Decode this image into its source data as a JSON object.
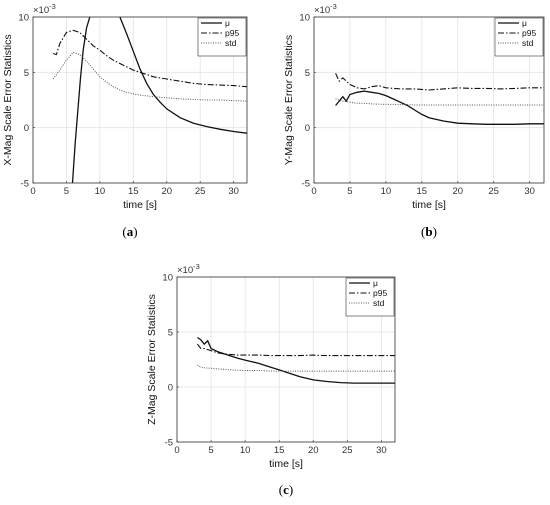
{
  "chart_data": [
    {
      "type": "line",
      "caption": "a",
      "ylabel": "X-Mag Scale Error Statistics",
      "xlabel": "time [s]",
      "y_exponent_label": "×10",
      "y_exponent": "-3",
      "xlim": [
        0,
        32
      ],
      "ylim": [
        -5,
        10
      ],
      "xticks": [
        "0",
        "5",
        "10",
        "15",
        "20",
        "25",
        "30"
      ],
      "yticks": [
        "-5",
        "0",
        "5",
        "10"
      ],
      "grid": true,
      "legend_position": "top-right",
      "series": [
        {
          "name": "μ",
          "style": "solid",
          "x": [
            5.9,
            6.3,
            6.7,
            7.1,
            7.5,
            8.0,
            8.5
          ],
          "y": [
            -5,
            -1.5,
            1.5,
            4.5,
            7,
            9,
            10
          ]
        },
        {
          "name": "μ",
          "style": "solid",
          "continuation": true,
          "x": [
            13.0,
            14,
            15,
            16,
            17,
            18,
            19,
            20,
            22,
            24,
            26,
            28,
            30,
            32
          ],
          "y": [
            10,
            8.5,
            6.9,
            5.3,
            4.0,
            3.0,
            2.3,
            1.7,
            0.9,
            0.4,
            0.1,
            -0.15,
            -0.35,
            -0.5
          ]
        },
        {
          "name": "p95",
          "style": "dashdot",
          "x": [
            3,
            3.5,
            4,
            5,
            6,
            7,
            8,
            9,
            10,
            11,
            12,
            13,
            14,
            15,
            16,
            17,
            18,
            19,
            20,
            22,
            24,
            26,
            28,
            30,
            32
          ],
          "y": [
            6.7,
            6.6,
            7.6,
            8.6,
            8.8,
            8.6,
            8.0,
            7.4,
            7.0,
            6.5,
            6.1,
            5.8,
            5.5,
            5.2,
            5.0,
            4.8,
            4.6,
            4.5,
            4.4,
            4.2,
            4.0,
            3.9,
            3.85,
            3.8,
            3.7
          ]
        },
        {
          "name": "std",
          "style": "dotted",
          "x": [
            3,
            4,
            5,
            6,
            7,
            8,
            9,
            10,
            11,
            12,
            13,
            14,
            15,
            16,
            18,
            20,
            22,
            24,
            26,
            28,
            30,
            32
          ],
          "y": [
            4.4,
            5.2,
            6.1,
            6.8,
            6.6,
            6.0,
            5.3,
            4.6,
            4.1,
            3.7,
            3.4,
            3.2,
            3.05,
            2.95,
            2.8,
            2.7,
            2.6,
            2.55,
            2.5,
            2.5,
            2.45,
            2.4
          ]
        }
      ]
    },
    {
      "type": "line",
      "caption": "b",
      "ylabel": "Y-Mag Scale Error Statistics",
      "xlabel": "time [s]",
      "y_exponent_label": "×10",
      "y_exponent": "-3",
      "xlim": [
        0,
        32
      ],
      "ylim": [
        -5,
        10
      ],
      "xticks": [
        "0",
        "5",
        "10",
        "15",
        "20",
        "25",
        "30"
      ],
      "yticks": [
        "-5",
        "0",
        "5",
        "10"
      ],
      "grid": true,
      "legend_position": "top-right",
      "series": [
        {
          "name": "μ",
          "style": "solid",
          "x": [
            3,
            3.5,
            4,
            4.5,
            5,
            6,
            7,
            8,
            9,
            10,
            11,
            12,
            13,
            14,
            15,
            16,
            18,
            20,
            22,
            24,
            26,
            28,
            30,
            32
          ],
          "y": [
            2.0,
            2.4,
            2.8,
            2.4,
            3.0,
            3.2,
            3.3,
            3.2,
            3.1,
            2.9,
            2.6,
            2.3,
            2.0,
            1.6,
            1.2,
            0.9,
            0.6,
            0.4,
            0.35,
            0.3,
            0.3,
            0.3,
            0.35,
            0.35
          ]
        },
        {
          "name": "p95",
          "style": "dashdot",
          "x": [
            3,
            3.5,
            4,
            5,
            6,
            7,
            8,
            9,
            10,
            12,
            14,
            16,
            18,
            20,
            22,
            24,
            26,
            28,
            30,
            32
          ],
          "y": [
            4.9,
            4.2,
            4.5,
            3.9,
            3.6,
            3.5,
            3.7,
            3.8,
            3.6,
            3.5,
            3.5,
            3.4,
            3.5,
            3.6,
            3.55,
            3.55,
            3.5,
            3.55,
            3.6,
            3.6
          ]
        },
        {
          "name": "std",
          "style": "dotted",
          "x": [
            3,
            4,
            5,
            6,
            7,
            8,
            10,
            12,
            14,
            16,
            18,
            20,
            22,
            24,
            26,
            28,
            30,
            32
          ],
          "y": [
            2.6,
            2.4,
            2.3,
            2.2,
            2.2,
            2.15,
            2.1,
            2.1,
            2.05,
            2.05,
            2.05,
            2.05,
            2.05,
            2.05,
            2.05,
            2.05,
            2.05,
            2.05
          ]
        }
      ]
    },
    {
      "type": "line",
      "caption": "c",
      "ylabel": "Z-Mag Scale Error Statistics",
      "xlabel": "time [s]",
      "y_exponent_label": "×10",
      "y_exponent": "-3",
      "xlim": [
        0,
        32
      ],
      "ylim": [
        -5,
        10
      ],
      "xticks": [
        "0",
        "5",
        "10",
        "15",
        "20",
        "25",
        "30"
      ],
      "yticks": [
        "-5",
        "0",
        "5",
        "10"
      ],
      "grid": true,
      "legend_position": "top-right",
      "series": [
        {
          "name": "μ",
          "style": "solid",
          "x": [
            3,
            3.5,
            4,
            4.5,
            5,
            6,
            7,
            8,
            9,
            10,
            11,
            12,
            13,
            14,
            15,
            16,
            17,
            18,
            19,
            20,
            22,
            24,
            26,
            28,
            30,
            32
          ],
          "y": [
            4.5,
            4.3,
            3.9,
            4.2,
            3.5,
            3.2,
            3.0,
            2.8,
            2.6,
            2.45,
            2.3,
            2.15,
            1.95,
            1.75,
            1.55,
            1.35,
            1.15,
            0.95,
            0.8,
            0.65,
            0.5,
            0.4,
            0.35,
            0.35,
            0.35,
            0.35
          ]
        },
        {
          "name": "p95",
          "style": "dashdot",
          "x": [
            3,
            3.5,
            4,
            5,
            6,
            7,
            8,
            9,
            10,
            12,
            14,
            16,
            18,
            20,
            22,
            24,
            26,
            28,
            30,
            32
          ],
          "y": [
            3.9,
            3.5,
            3.5,
            3.3,
            3.1,
            3.0,
            2.95,
            2.9,
            2.9,
            2.9,
            2.85,
            2.85,
            2.85,
            2.9,
            2.85,
            2.85,
            2.85,
            2.85,
            2.85,
            2.85
          ]
        },
        {
          "name": "std",
          "style": "dotted",
          "x": [
            3,
            3.5,
            4,
            5,
            6,
            7,
            8,
            10,
            12,
            14,
            16,
            18,
            20,
            22,
            24,
            26,
            28,
            30,
            32
          ],
          "y": [
            2.0,
            1.8,
            1.75,
            1.7,
            1.65,
            1.6,
            1.55,
            1.5,
            1.5,
            1.45,
            1.45,
            1.45,
            1.45,
            1.45,
            1.45,
            1.45,
            1.45,
            1.45,
            1.45
          ]
        }
      ]
    }
  ]
}
